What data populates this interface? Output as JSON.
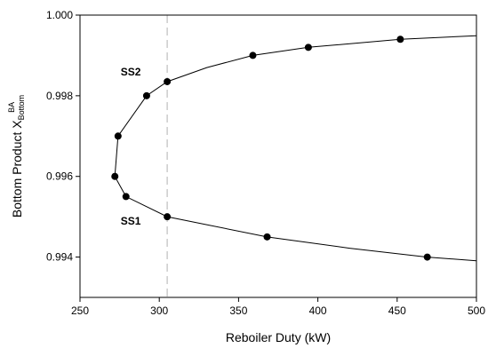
{
  "chart_data": {
    "type": "line",
    "title": "",
    "xlabel": "Reboiler Duty (kW)",
    "ylabel": {
      "main": "Bottom Product  X",
      "sub": "Bottom",
      "sup": "BA"
    },
    "xlim": [
      250,
      500
    ],
    "ylim": [
      0.993,
      1.0
    ],
    "xticks": [
      250,
      300,
      350,
      400,
      450,
      500
    ],
    "yticks": [
      0.994,
      0.996,
      0.998,
      1.0
    ],
    "xtick_labels": [
      "250",
      "300",
      "350",
      "400",
      "450",
      "500"
    ],
    "ytick_labels": [
      "0.994",
      "0.996",
      "0.998",
      "1.000"
    ],
    "grid": false,
    "reference_line": {
      "x": 305,
      "style": "dashed",
      "color": "#cccccc"
    },
    "line_color": "#000000",
    "marker_color": "#000000",
    "annotations": [
      {
        "text": "SS2",
        "x": 282,
        "y": 0.9985
      },
      {
        "text": "SS1",
        "x": 282,
        "y": 0.9948
      }
    ],
    "series": [
      {
        "markers": [
          {
            "x": 305,
            "y": 0.99835
          },
          {
            "x": 292,
            "y": 0.998
          },
          {
            "x": 274,
            "y": 0.997
          },
          {
            "x": 272,
            "y": 0.996
          },
          {
            "x": 279,
            "y": 0.9955
          },
          {
            "x": 305,
            "y": 0.995
          },
          {
            "x": 359,
            "y": 0.999
          },
          {
            "x": 394,
            "y": 0.9992
          },
          {
            "x": 452,
            "y": 0.9994
          },
          {
            "x": 368,
            "y": 0.9945
          },
          {
            "x": 469,
            "y": 0.994
          }
        ],
        "upper_branch": [
          {
            "x": 272,
            "y": 0.996
          },
          {
            "x": 274,
            "y": 0.997
          },
          {
            "x": 292,
            "y": 0.998
          },
          {
            "x": 305,
            "y": 0.99835
          },
          {
            "x": 330,
            "y": 0.9987
          },
          {
            "x": 359,
            "y": 0.999
          },
          {
            "x": 394,
            "y": 0.9992
          },
          {
            "x": 452,
            "y": 0.9994
          },
          {
            "x": 500,
            "y": 0.99949
          }
        ],
        "lower_branch": [
          {
            "x": 272,
            "y": 0.996
          },
          {
            "x": 279,
            "y": 0.9955
          },
          {
            "x": 305,
            "y": 0.995
          },
          {
            "x": 368,
            "y": 0.9945
          },
          {
            "x": 420,
            "y": 0.99422
          },
          {
            "x": 469,
            "y": 0.994
          },
          {
            "x": 500,
            "y": 0.99391
          }
        ]
      }
    ]
  }
}
